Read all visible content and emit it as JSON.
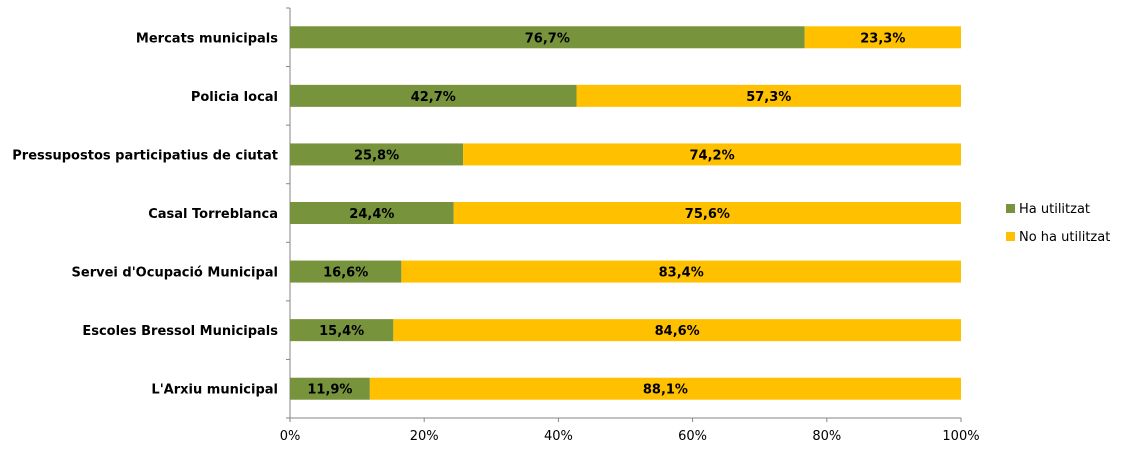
{
  "chart_data": {
    "type": "bar",
    "orientation": "horizontal",
    "stacked": true,
    "percent_stacked": true,
    "categories": [
      "Mercats municipals",
      "Policia local",
      "Pressupostos participatius de ciutat",
      "Casal Torreblanca",
      "Servei d'Ocupació Municipal",
      "Escoles Bressol Municipals",
      "L'Arxiu municipal"
    ],
    "series": [
      {
        "name": "Ha utilitzat",
        "color": "#77933C",
        "values": [
          76.7,
          42.7,
          25.8,
          24.4,
          16.6,
          15.4,
          11.9
        ],
        "labels": [
          "76,7%",
          "42,7%",
          "25,8%",
          "24,4%",
          "16,6%",
          "15,4%",
          "11,9%"
        ]
      },
      {
        "name": "No ha utilitzat",
        "color": "#FFC000",
        "values": [
          23.3,
          57.3,
          74.2,
          75.6,
          83.4,
          84.6,
          88.1
        ],
        "labels": [
          "23,3%",
          "57,3%",
          "74,2%",
          "75,6%",
          "83,4%",
          "84,6%",
          "88,1%"
        ]
      }
    ],
    "xlim": [
      0,
      100
    ],
    "x_ticks": [
      "0%",
      "20%",
      "40%",
      "60%",
      "80%",
      "100%"
    ],
    "title": "",
    "xlabel": "",
    "ylabel": "",
    "grid": false,
    "legend_position": "right"
  }
}
